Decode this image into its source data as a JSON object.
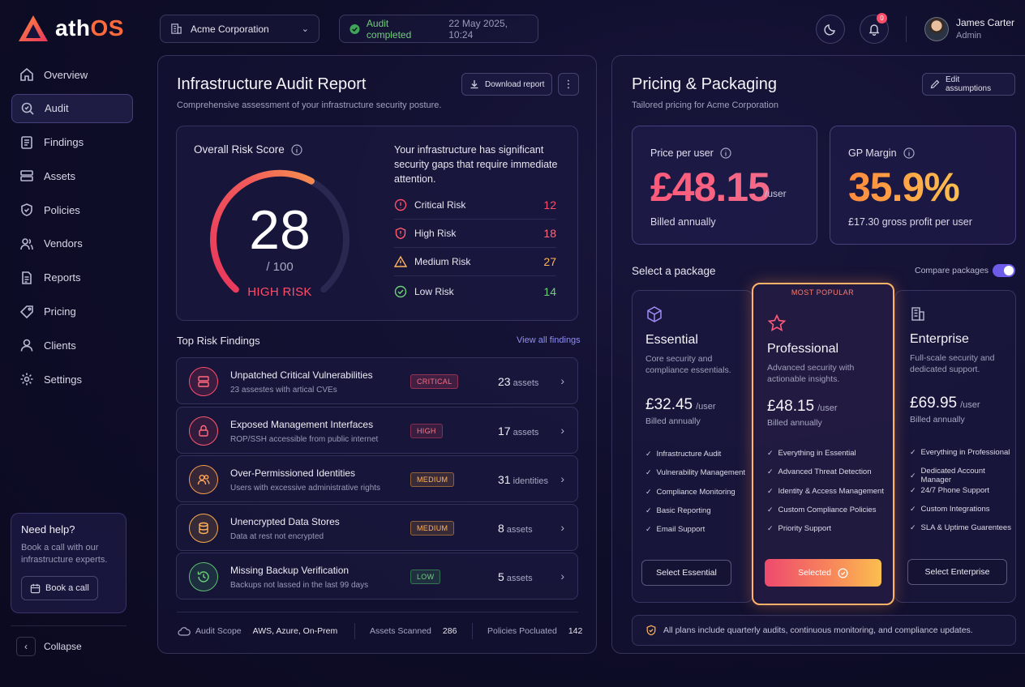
{
  "app": {
    "logo_a": "ath",
    "logo_b": "OS"
  },
  "colors": {
    "accent": "#6d5ce8",
    "critical": "#ff4d6a",
    "medium": "#ffb45a",
    "low": "#6fd07a",
    "brand": "#ff6a3d"
  },
  "sidebar": {
    "items": [
      {
        "label": "Overview",
        "icon": "home-icon"
      },
      {
        "label": "Audit",
        "icon": "audit-search-icon",
        "active": true
      },
      {
        "label": "Findings",
        "icon": "findings-icon"
      },
      {
        "label": "Assets",
        "icon": "assets-icon"
      },
      {
        "label": "Policies",
        "icon": "shield-icon"
      },
      {
        "label": "Vendors",
        "icon": "vendors-icon"
      },
      {
        "label": "Reports",
        "icon": "report-icon"
      },
      {
        "label": "Pricing",
        "icon": "pricing-tag-icon"
      },
      {
        "label": "Clients",
        "icon": "user-icon"
      },
      {
        "label": "Settings",
        "icon": "gear-icon"
      }
    ],
    "help": {
      "title": "Need help?",
      "text": "Book a call with our infrastructure experts.",
      "button": "Book a call"
    },
    "collapse": "Collapse"
  },
  "topbar": {
    "org": "Acme Corporation",
    "audit_status": "Audit completed",
    "audit_date": "22 May 2025, 10:24",
    "notifications": "0",
    "user_name": "James Carter",
    "user_role": "Admin"
  },
  "audit": {
    "title": "Infrastructure Audit Report",
    "subtitle": "Comprehensive assessment of your infrastructure security posture.",
    "download": "Download report",
    "risk_title": "Overall Risk Score",
    "score": "28",
    "score_max": "/ 100",
    "score_fraction": 0.28,
    "risk_level": "HIGH RISK",
    "summary": "Your infrastructure has significant security gaps that require immediate attention.",
    "levels": [
      {
        "label": "Critical Risk",
        "count": "12",
        "color": "#ff4d6a"
      },
      {
        "label": "High Risk",
        "count": "18",
        "color": "#ff6b7d"
      },
      {
        "label": "Medium Risk",
        "count": "27",
        "color": "#ffb45a"
      },
      {
        "label": "Low Risk",
        "count": "14",
        "color": "#6fd07a"
      }
    ],
    "findings_title": "Top Risk Findings",
    "view_all": "View all findings",
    "findings": [
      {
        "title": "Unpatched Critical Vulnerabilities",
        "desc": "23 assestes with artical CVEs",
        "badge": "CRITICAL",
        "count": "23",
        "unit": "assets"
      },
      {
        "title": "Exposed Management Interfaces",
        "desc": "ROP/SSH accessible from public internet",
        "badge": "HIGH",
        "count": "17",
        "unit": "assets"
      },
      {
        "title": "Over-Permissioned Identities",
        "desc": "Users with excessive administrative rights",
        "badge": "MEDIUM",
        "count": "31",
        "unit": "identities"
      },
      {
        "title": "Unencrypted Data Stores",
        "desc": "Data at rest not encrypted",
        "badge": "MEDIUM",
        "count": "8",
        "unit": "assets"
      },
      {
        "title": "Missing Backup Verification",
        "desc": "Backups not lassed in the last 99 days",
        "badge": "LOW",
        "count": "5",
        "unit": "assets"
      }
    ],
    "footer": {
      "scope_label": "Audit Scope",
      "scope_value": "AWS, Azure, On-Prem",
      "scanned_label": "Assets Scanned",
      "scanned_value": "286",
      "policies_label": "Policies Pocluated",
      "policies_value": "142"
    }
  },
  "pricing": {
    "title": "Pricing & Packaging",
    "subtitle": "Tailored pricing for Acme Corporation",
    "edit": "Edit assumptions",
    "price_label": "Price per user",
    "price_value": "£48.15",
    "price_unit": "/user",
    "price_foot": "Billed annually",
    "margin_label": "GP Margin",
    "margin_value": "35.9%",
    "margin_foot": "£17.30 gross profit per user",
    "select_label": "Select a package",
    "compare": "Compare packages",
    "most_popular": "MOST POPULAR",
    "packages": [
      {
        "name": "Essential",
        "desc": "Core security and compliance essentials.",
        "price": "£32.45",
        "unit": "/user",
        "billed": "Billed annually",
        "features": [
          "Infrastructure Audit",
          "Vulnerability Management",
          "Compliance Monitoring",
          "Basic Reporting",
          "Email Support"
        ],
        "button": "Select Essential"
      },
      {
        "name": "Professional",
        "desc": "Advanced security with actionable insights.",
        "price": "£48.15",
        "unit": "/user",
        "billed": "Billed annually",
        "features": [
          "Everything in Essential",
          "Advanced Threat Detection",
          "Identity & Access Management",
          "Custom Compliance Policies",
          "Priority Support"
        ],
        "button": "Selected"
      },
      {
        "name": "Enterprise",
        "desc": "Full-scale security and dedicated support.",
        "price": "£69.95",
        "unit": "/user",
        "billed": "Billed annually",
        "features": [
          "Everything in Professional",
          "Dedicated Account Manager",
          "24/7 Phone Support",
          "Custom Integrations",
          "SLA & Uptime Guarentees"
        ],
        "button": "Select Enterprise"
      }
    ],
    "note": "All plans include quarterly audits, continuous monitoring, and compliance updates."
  }
}
